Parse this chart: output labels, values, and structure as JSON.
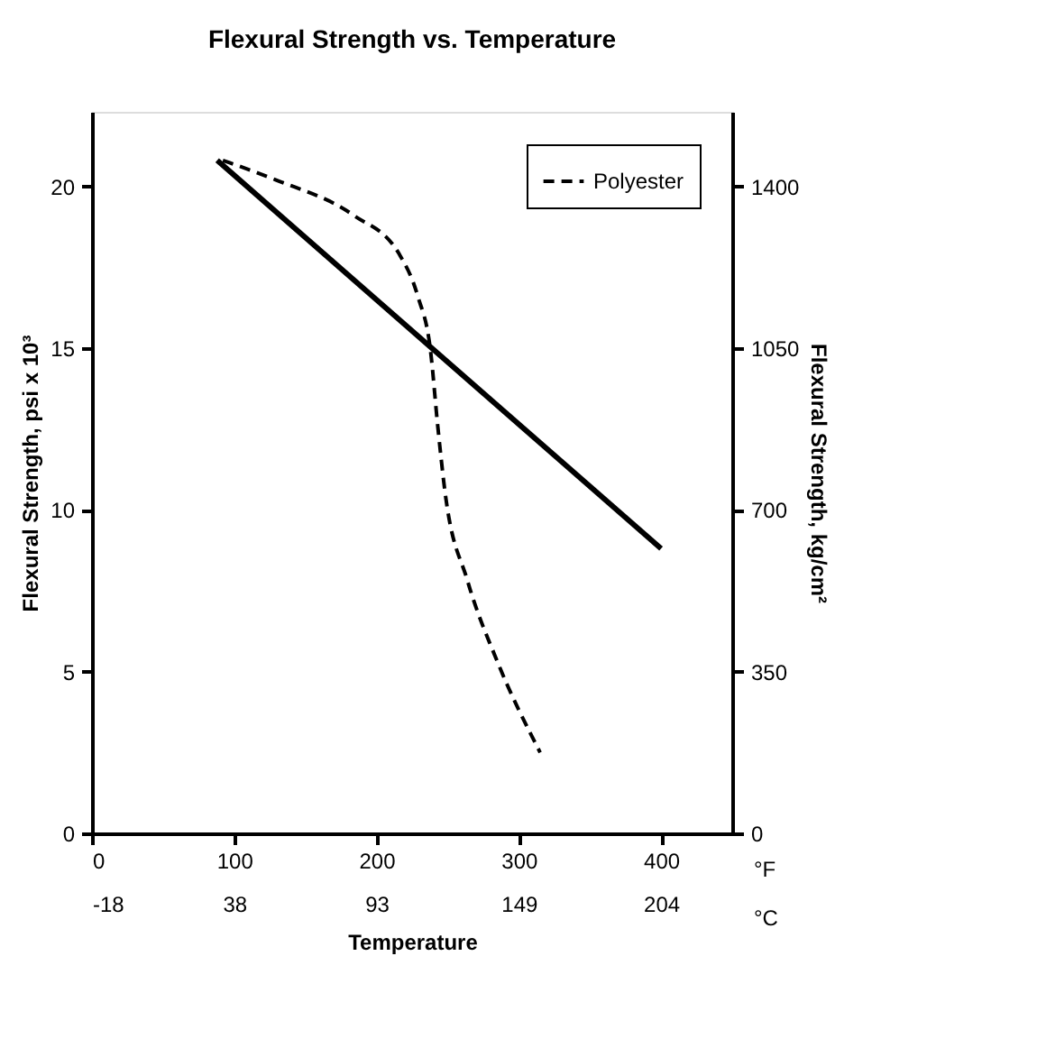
{
  "chart_data": {
    "type": "line",
    "title": "Flexural Strength vs. Temperature",
    "xlabel": "Temperature",
    "ylabel": "Flexural Strength, psi x 10³",
    "y2label": "Flexural Strength, kg/cm²",
    "series": [
      {
        "color": "#000000",
        "line_style": "solid",
        "x": [
          88,
          400
        ],
        "values": [
          20.8,
          8.8
        ]
      },
      {
        "name": "Polyester",
        "color": "#000000",
        "line_style": "dashed",
        "x": [
          92,
          129,
          184,
          216,
          229,
          238,
          243,
          248,
          264,
          285,
          315
        ],
        "values": [
          20.8,
          20.2,
          19.1,
          17.9,
          16.6,
          14.9,
          12.6,
          10.6,
          7.8,
          5.3,
          2.5
        ]
      }
    ],
    "xlim": [
      0,
      450
    ],
    "xticks": [
      0,
      100,
      200,
      300,
      400
    ],
    "x2lim": [
      -17.78,
      232.22
    ],
    "x2ticks": [
      {
        "value": -17.78,
        "label": "-18"
      },
      {
        "value": 37.78,
        "label": "38"
      },
      {
        "value": 93.33,
        "label": "93"
      },
      {
        "value": 148.89,
        "label": "149"
      },
      {
        "value": 204.44,
        "label": "204"
      }
    ],
    "ylim": [
      0,
      22.3
    ],
    "yticks": [
      0,
      5,
      10,
      15,
      20
    ],
    "y2lim": [
      0,
      1561
    ],
    "y2ticks": [
      0,
      350,
      700,
      1050,
      1400
    ],
    "annotations": [
      "°F",
      "°C"
    ],
    "legend": "top right",
    "grid": false
  }
}
